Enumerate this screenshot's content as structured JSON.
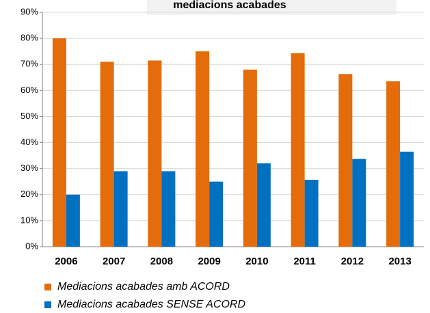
{
  "chart_data": {
    "type": "bar",
    "title": "mediacions acabades",
    "categories": [
      "2006",
      "2007",
      "2008",
      "2009",
      "2010",
      "2011",
      "2012",
      "2013"
    ],
    "series": [
      {
        "name": "Mediacions acabades amb ACORD",
        "color": "#e46c0a",
        "values": [
          80,
          71,
          71.5,
          75,
          68,
          74.3,
          66.3,
          63.5
        ]
      },
      {
        "name": "Mediacions acabades SENSE ACORD",
        "color": "#0070c0",
        "values": [
          20,
          29,
          29,
          25,
          32,
          25.7,
          33.7,
          36.5
        ]
      }
    ],
    "ylim": [
      0,
      90
    ],
    "yticks": [
      {
        "value": 0,
        "label": "0%"
      },
      {
        "value": 10,
        "label": "10%"
      },
      {
        "value": 20,
        "label": "20%"
      },
      {
        "value": 30,
        "label": "30%"
      },
      {
        "value": 40,
        "label": "40%"
      },
      {
        "value": 50,
        "label": "50%"
      },
      {
        "value": 60,
        "label": "60%"
      },
      {
        "value": 70,
        "label": "70%"
      },
      {
        "value": 80,
        "label": "80%"
      },
      {
        "value": 90,
        "label": "90%"
      }
    ],
    "grid": true
  }
}
